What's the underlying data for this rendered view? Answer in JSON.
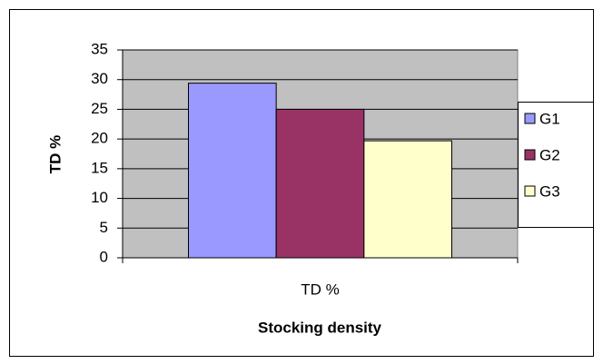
{
  "chart_data": {
    "type": "bar",
    "categories": [
      "TD %"
    ],
    "series": [
      {
        "name": "G1",
        "color": "#9999ff",
        "values": [
          29.4
        ]
      },
      {
        "name": "G2",
        "color": "#993366",
        "values": [
          25
        ]
      },
      {
        "name": "G3",
        "color": "#ffffcc",
        "values": [
          19.7
        ]
      }
    ],
    "xlabel": "Stocking density",
    "ylabel": "TD %",
    "ylim": [
      0,
      35
    ],
    "yticks": [
      0,
      5,
      10,
      15,
      20,
      25,
      30,
      35
    ],
    "grid": true,
    "legend": "right",
    "plot_background": "#c0c0c0"
  }
}
